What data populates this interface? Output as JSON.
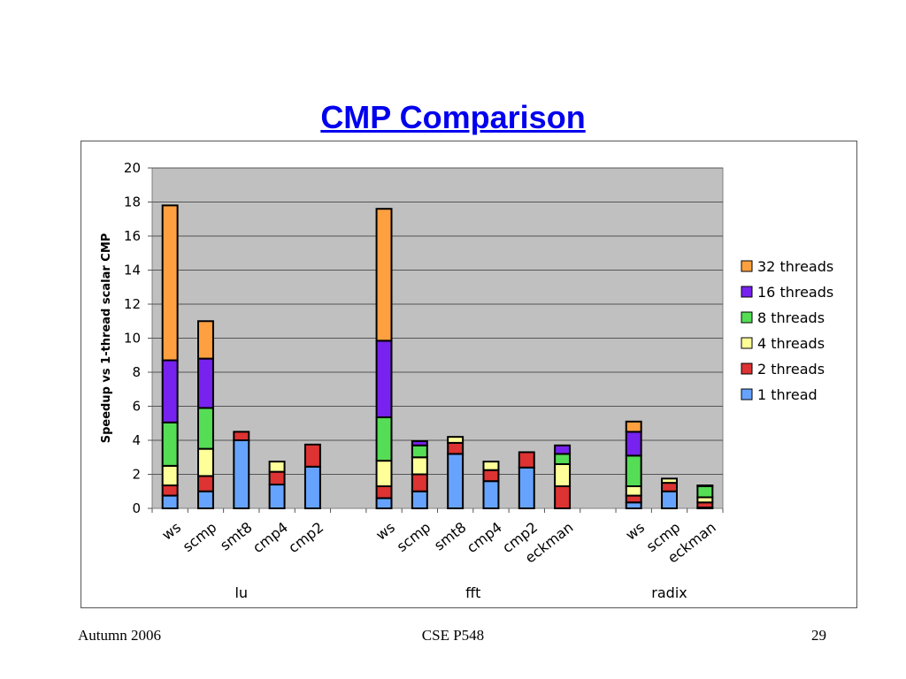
{
  "page": {
    "title": "CMP Comparison"
  },
  "footer": {
    "left": "Autumn 2006",
    "center": "CSE P548",
    "right": "29"
  },
  "chart_data": {
    "type": "bar",
    "stacked": true,
    "title": "",
    "ylabel": "Speedup vs 1-thread scalar CMP",
    "xlabel": "",
    "ylim": [
      0,
      20
    ],
    "yticks": [
      0,
      2,
      4,
      6,
      8,
      10,
      12,
      14,
      16,
      18,
      20
    ],
    "grid": true,
    "legend_position": "right",
    "background_color": "#c0c0c0",
    "series": [
      {
        "name": "1 thread",
        "color": "#66a3ff"
      },
      {
        "name": "2 threads",
        "color": "#dd3333"
      },
      {
        "name": "4 threads",
        "color": "#ffff99"
      },
      {
        "name": "8 threads",
        "color": "#55dd55"
      },
      {
        "name": "16 threads",
        "color": "#7722ee"
      },
      {
        "name": "32 threads",
        "color": "#ffa040"
      }
    ],
    "groups": [
      {
        "label": "lu",
        "categories": [
          {
            "label": "ws",
            "values": [
              0.75,
              0.6,
              1.15,
              2.55,
              3.65,
              9.1
            ]
          },
          {
            "label": "scmp",
            "values": [
              1.0,
              0.9,
              1.6,
              2.4,
              2.9,
              2.2
            ]
          },
          {
            "label": "smt8",
            "values": [
              4.0,
              0.5,
              0,
              0,
              0,
              0
            ]
          },
          {
            "label": "cmp4",
            "values": [
              1.4,
              0.75,
              0.6,
              0,
              0,
              0
            ]
          },
          {
            "label": "cmp2",
            "values": [
              2.45,
              1.3,
              0,
              0,
              0,
              0
            ]
          }
        ]
      },
      {
        "label": "fft",
        "categories": [
          {
            "label": "ws",
            "values": [
              0.6,
              0.7,
              1.5,
              2.55,
              4.5,
              7.75
            ]
          },
          {
            "label": "scmp",
            "values": [
              1.0,
              1.0,
              1.0,
              0.7,
              0.25,
              0
            ]
          },
          {
            "label": "smt8",
            "values": [
              3.2,
              0.65,
              0.35,
              0,
              0,
              0
            ]
          },
          {
            "label": "cmp4",
            "values": [
              1.6,
              0.65,
              0.5,
              0,
              0,
              0
            ]
          },
          {
            "label": "cmp2",
            "values": [
              2.4,
              0.9,
              0,
              0,
              0,
              0
            ]
          },
          {
            "label": "eckman",
            "values": [
              0,
              1.3,
              1.3,
              0.6,
              0.5,
              0
            ]
          }
        ]
      },
      {
        "label": "radix",
        "categories": [
          {
            "label": "ws",
            "values": [
              0.35,
              0.4,
              0.55,
              1.8,
              1.4,
              0.6
            ]
          },
          {
            "label": "scmp",
            "values": [
              1.0,
              0.5,
              0.25,
              0,
              0,
              0
            ]
          },
          {
            "label": "eckman",
            "values": [
              0.05,
              0.3,
              0.3,
              0.65,
              0.05,
              0
            ]
          }
        ]
      }
    ]
  }
}
